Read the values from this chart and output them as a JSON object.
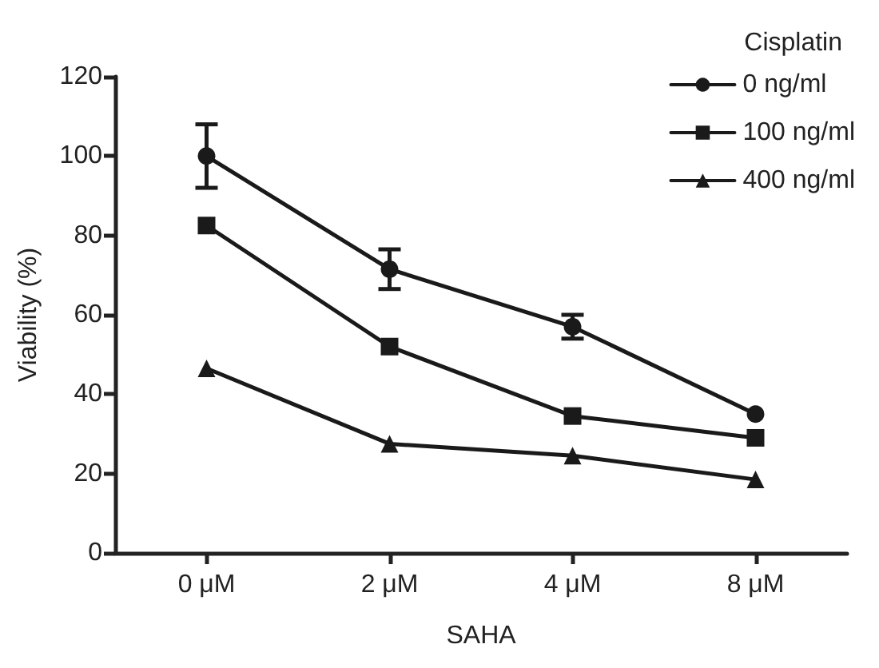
{
  "chart_data": {
    "type": "line",
    "xlabel": "SAHA",
    "ylabel": "Viability (%)",
    "legend_title": "Cisplatin",
    "categories": [
      "0 μM",
      "2 μM",
      "4 μM",
      "8 μM"
    ],
    "series": [
      {
        "name": "0 ng/ml",
        "color": "#1a1a1a",
        "marker": "circle",
        "values": [
          100,
          71.5,
          57,
          35
        ],
        "errors": [
          8,
          5,
          3,
          null
        ]
      },
      {
        "name": "100 ng/ml",
        "color": "#1a1a1a",
        "marker": "square",
        "values": [
          82.5,
          52,
          34.5,
          29
        ]
      },
      {
        "name": "400 ng/ml",
        "color": "#1a1a1a",
        "marker": "triangle",
        "values": [
          46.5,
          27.5,
          24.5,
          18.5
        ]
      }
    ],
    "ylim": [
      0,
      120
    ],
    "yticks": [
      0,
      20,
      40,
      60,
      80,
      100,
      120
    ],
    "grid": false,
    "legend": "top right",
    "line_style": "solid"
  }
}
